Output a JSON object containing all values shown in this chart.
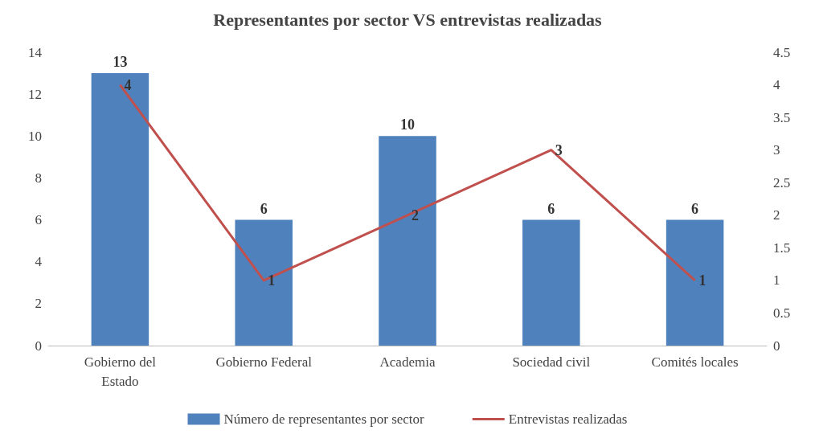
{
  "chart_data": {
    "type": "bar",
    "title": "Representantes por sector VS entrevistas realizadas",
    "categories": [
      "Gobierno del\nEstado",
      "Gobierno Federal",
      "Academia",
      "Sociedad civil",
      "Comités locales"
    ],
    "series": [
      {
        "name": "Número de representantes por sector",
        "color": "#4f81bd",
        "values": [
          13,
          6,
          10,
          6,
          6
        ]
      },
      {
        "name": "Entrevistas realizadas",
        "type": "line",
        "axis": "y2",
        "color": "#c0504d",
        "values": [
          4,
          1,
          2,
          3,
          1
        ]
      }
    ],
    "ylim": [
      0,
      14
    ],
    "yticks": [
      0,
      2,
      4,
      6,
      8,
      10,
      12,
      14
    ],
    "y2lim": [
      0,
      4.5
    ],
    "y2ticks": [
      0,
      0.5,
      1,
      1.5,
      2,
      2.5,
      3,
      3.5,
      4,
      4.5
    ],
    "data_labels": true,
    "legend": "bottom",
    "grid": false,
    "marker": "none",
    "line_style": "solid"
  }
}
